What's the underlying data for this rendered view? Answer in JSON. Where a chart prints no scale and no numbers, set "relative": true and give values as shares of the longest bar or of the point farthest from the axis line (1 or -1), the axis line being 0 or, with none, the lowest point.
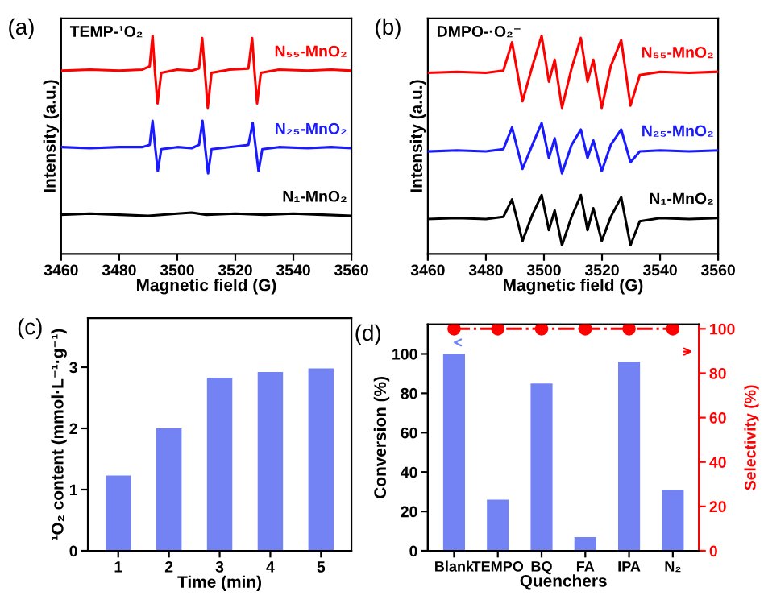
{
  "chart_data": [
    {
      "type": "line",
      "title": "(a)",
      "relative": true,
      "xlabel": "Magnetic field (G)",
      "ylabel": "Intensity (a.u.)",
      "annotations": [
        "TEMP-¹O₂"
      ],
      "xlim": [
        3460,
        3560
      ],
      "xticks": [
        3460,
        3480,
        3500,
        3520,
        3540,
        3560
      ],
      "grid": false,
      "legend": false,
      "tick_labels": "x",
      "series": [
        {
          "name": "N₅₅-MnO₂",
          "color": "#ff0000",
          "x": [
            3460,
            3470,
            3480,
            3488,
            3490.5,
            3491.5,
            3492.3,
            3493.2,
            3494.5,
            3500,
            3505,
            3507.5,
            3508.6,
            3509.5,
            3510.5,
            3511.8,
            3518,
            3524.5,
            3525.8,
            3526.6,
            3527.5,
            3528.8,
            3535,
            3545,
            3553,
            3560
          ],
          "values": [
            0.84,
            0.845,
            0.84,
            0.845,
            0.86,
            1.0,
            0.84,
            0.69,
            0.83,
            0.845,
            0.84,
            0.85,
            0.99,
            0.84,
            0.67,
            0.83,
            0.845,
            0.85,
            0.99,
            0.84,
            0.69,
            0.83,
            0.845,
            0.84,
            0.845,
            0.84
          ]
        },
        {
          "name": "N₂₅-MnO₂",
          "color": "#1a1aff",
          "x": [
            3460,
            3470,
            3480,
            3488,
            3490.5,
            3491.5,
            3492.4,
            3493.3,
            3494.5,
            3500,
            3505,
            3507.5,
            3508.7,
            3509.6,
            3510.6,
            3511.8,
            3518,
            3524.5,
            3526,
            3527,
            3528,
            3529.3,
            3535,
            3545,
            3553,
            3560
          ],
          "values": [
            0.49,
            0.485,
            0.49,
            0.49,
            0.5,
            0.61,
            0.49,
            0.38,
            0.48,
            0.49,
            0.485,
            0.5,
            0.61,
            0.49,
            0.37,
            0.48,
            0.49,
            0.5,
            0.6,
            0.49,
            0.38,
            0.48,
            0.49,
            0.485,
            0.49,
            0.485
          ]
        },
        {
          "name": "N₁-MnO₂",
          "color": "#000000",
          "x": [
            3460,
            3470,
            3480,
            3490,
            3500,
            3505,
            3510,
            3520,
            3530,
            3540,
            3550,
            3560
          ],
          "values": [
            0.18,
            0.185,
            0.18,
            0.175,
            0.185,
            0.19,
            0.18,
            0.185,
            0.18,
            0.185,
            0.18,
            0.175
          ]
        }
      ]
    },
    {
      "type": "line",
      "title": "(b)",
      "relative": true,
      "xlabel": "Magnetic field (G)",
      "ylabel": "Intensity (a.u.)",
      "annotations": [
        "DMPO-·O₂⁻"
      ],
      "xlim": [
        3460,
        3560
      ],
      "xticks": [
        3460,
        3480,
        3500,
        3520,
        3540,
        3560
      ],
      "grid": false,
      "legend": false,
      "tick_labels": "x",
      "series": [
        {
          "name": "N₅₅-MnO₂",
          "color": "#ff0000",
          "x": [
            3460,
            3470,
            3480,
            3486,
            3489,
            3492.6,
            3496,
            3499.2,
            3501.7,
            3503.7,
            3506.2,
            3509.5,
            3512.7,
            3515,
            3517,
            3519.9,
            3523,
            3526.6,
            3529.8,
            3533,
            3540,
            3550,
            3560
          ],
          "values": [
            0.83,
            0.835,
            0.83,
            0.84,
            0.97,
            0.7,
            0.86,
            1.0,
            0.79,
            0.89,
            0.67,
            0.85,
            0.99,
            0.79,
            0.89,
            0.67,
            0.86,
            0.98,
            0.68,
            0.82,
            0.835,
            0.83,
            0.835
          ]
        },
        {
          "name": "N₂₅-MnO₂",
          "color": "#1a1aff",
          "x": [
            3460,
            3470,
            3480,
            3486,
            3489,
            3492.6,
            3496,
            3499.2,
            3501.7,
            3503.7,
            3506.2,
            3509.5,
            3512.7,
            3515,
            3517,
            3519.9,
            3523,
            3526.6,
            3529.8,
            3533,
            3540,
            3550,
            3560
          ],
          "values": [
            0.47,
            0.475,
            0.47,
            0.48,
            0.58,
            0.39,
            0.5,
            0.6,
            0.44,
            0.53,
            0.37,
            0.5,
            0.57,
            0.44,
            0.52,
            0.38,
            0.5,
            0.57,
            0.42,
            0.47,
            0.475,
            0.47,
            0.475
          ]
        },
        {
          "name": "N₁-MnO₂",
          "color": "#000000",
          "x": [
            3460,
            3470,
            3480,
            3486,
            3489,
            3492.6,
            3496,
            3499.2,
            3501.7,
            3503.7,
            3506.2,
            3509.5,
            3512.7,
            3515,
            3517,
            3519.9,
            3523,
            3526.6,
            3529.8,
            3533,
            3540,
            3550,
            3560
          ],
          "values": [
            0.16,
            0.165,
            0.16,
            0.17,
            0.25,
            0.06,
            0.18,
            0.27,
            0.11,
            0.2,
            0.04,
            0.17,
            0.27,
            0.11,
            0.21,
            0.06,
            0.17,
            0.26,
            0.04,
            0.15,
            0.165,
            0.16,
            0.165
          ]
        }
      ]
    },
    {
      "type": "bar",
      "title": "(c)",
      "xlabel": "Time (min)",
      "ylabel": "¹O₂ content (mmol·L⁻¹·g⁻¹)",
      "categories": [
        "1",
        "2",
        "3",
        "4",
        "5"
      ],
      "values": [
        1.23,
        2.0,
        2.83,
        2.92,
        2.98
      ],
      "color": "#7383f3",
      "ylim": [
        0,
        3.8
      ],
      "yticks": [
        0,
        1,
        2,
        3
      ],
      "grid": false,
      "legend": false
    },
    {
      "type": "bar",
      "title": "(d)",
      "xlabel": "Quenchers",
      "ylabel": "Conversion (%)",
      "y2label": "Selectivity (%)",
      "categories": [
        "Blank",
        "TEMPO",
        "BQ",
        "FA",
        "IPA",
        "N₂"
      ],
      "ylim": [
        0,
        115
      ],
      "yticks": [
        0,
        20,
        40,
        60,
        80,
        100
      ],
      "y2lim": [
        0,
        102
      ],
      "y2ticks": [
        0,
        20,
        40,
        60,
        80,
        100
      ],
      "grid": false,
      "legend": false,
      "series": [
        {
          "color": "#7383f3",
          "values": [
            100,
            26,
            85,
            7,
            96,
            31
          ]
        },
        {
          "type": "line",
          "axis": "y2",
          "color": "#ff0000",
          "marker": "circle",
          "line_style": "dashed",
          "values": [
            100,
            100,
            100,
            100,
            100,
            100
          ]
        }
      ]
    }
  ]
}
